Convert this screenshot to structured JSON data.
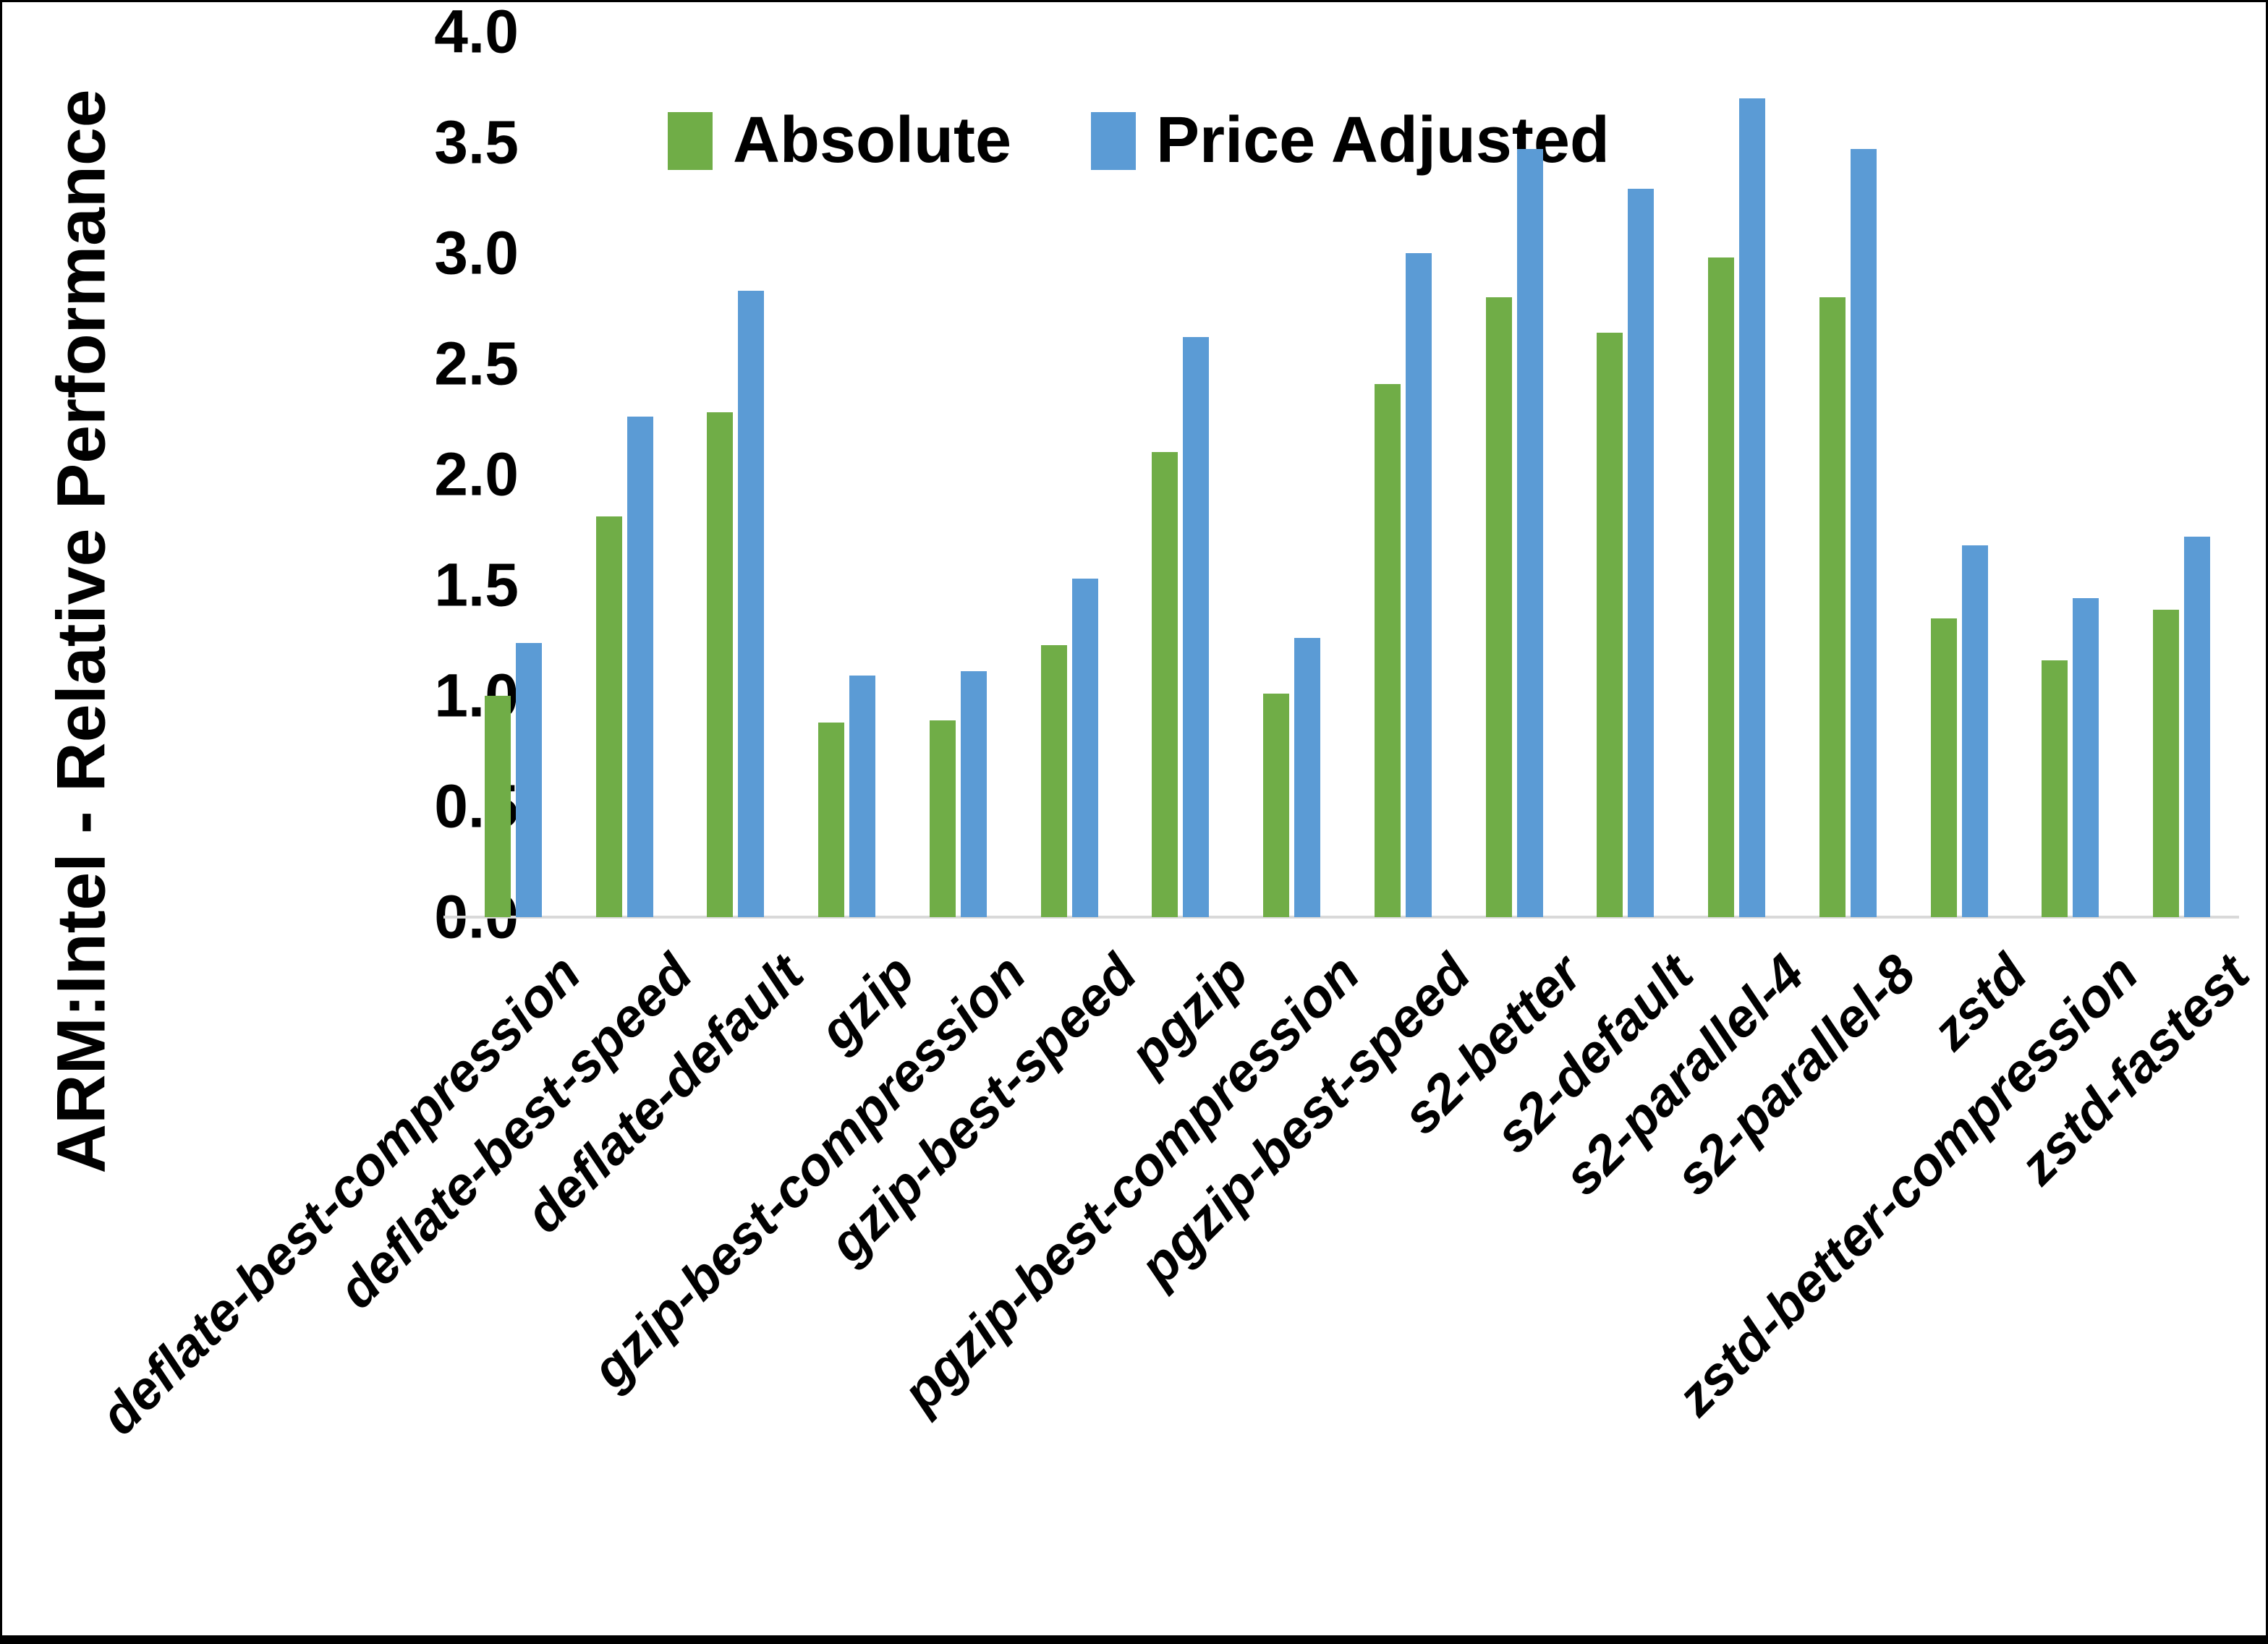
{
  "chart_data": {
    "type": "bar",
    "title": "",
    "xlabel": "",
    "ylabel": "ARM:Intel - Relative Performance",
    "ylim": [
      0.0,
      4.0
    ],
    "ytick_step": 0.5,
    "ytick_labels": [
      "0.0",
      "0.5",
      "1.0",
      "1.5",
      "2.0",
      "2.5",
      "3.0",
      "3.5",
      "4.0"
    ],
    "grid": false,
    "legend_position": "top-center",
    "categories": [
      "deflate-best-compression",
      "deflate-best-speed",
      "deflate-default",
      "gzip",
      "gzip-best-compression",
      "gzip-best-speed",
      "pgzip",
      "pgzip-best-compression",
      "pgzip-best-speed",
      "s2-better",
      "s2-default",
      "s2-parallel-4",
      "s2-parallel-8",
      "zstd",
      "zstd-better-compression",
      "zstd-fastest"
    ],
    "series": [
      {
        "name": "Absolute",
        "color": "#70AD47",
        "values": [
          1.0,
          1.81,
          2.28,
          0.88,
          0.89,
          1.23,
          2.1,
          1.01,
          2.41,
          2.8,
          2.64,
          2.98,
          2.8,
          1.35,
          1.16,
          1.39
        ]
      },
      {
        "name": "Price Adjusted",
        "color": "#5B9BD5",
        "values": [
          1.24,
          2.26,
          2.83,
          1.09,
          1.11,
          1.53,
          2.62,
          1.26,
          3.0,
          3.47,
          3.29,
          3.7,
          3.47,
          1.68,
          1.44,
          1.72
        ]
      }
    ]
  },
  "colors": {
    "background": "#ffffff",
    "axis_line": "#d9d9d9",
    "text": "#000000",
    "border_bar": "#000000"
  }
}
